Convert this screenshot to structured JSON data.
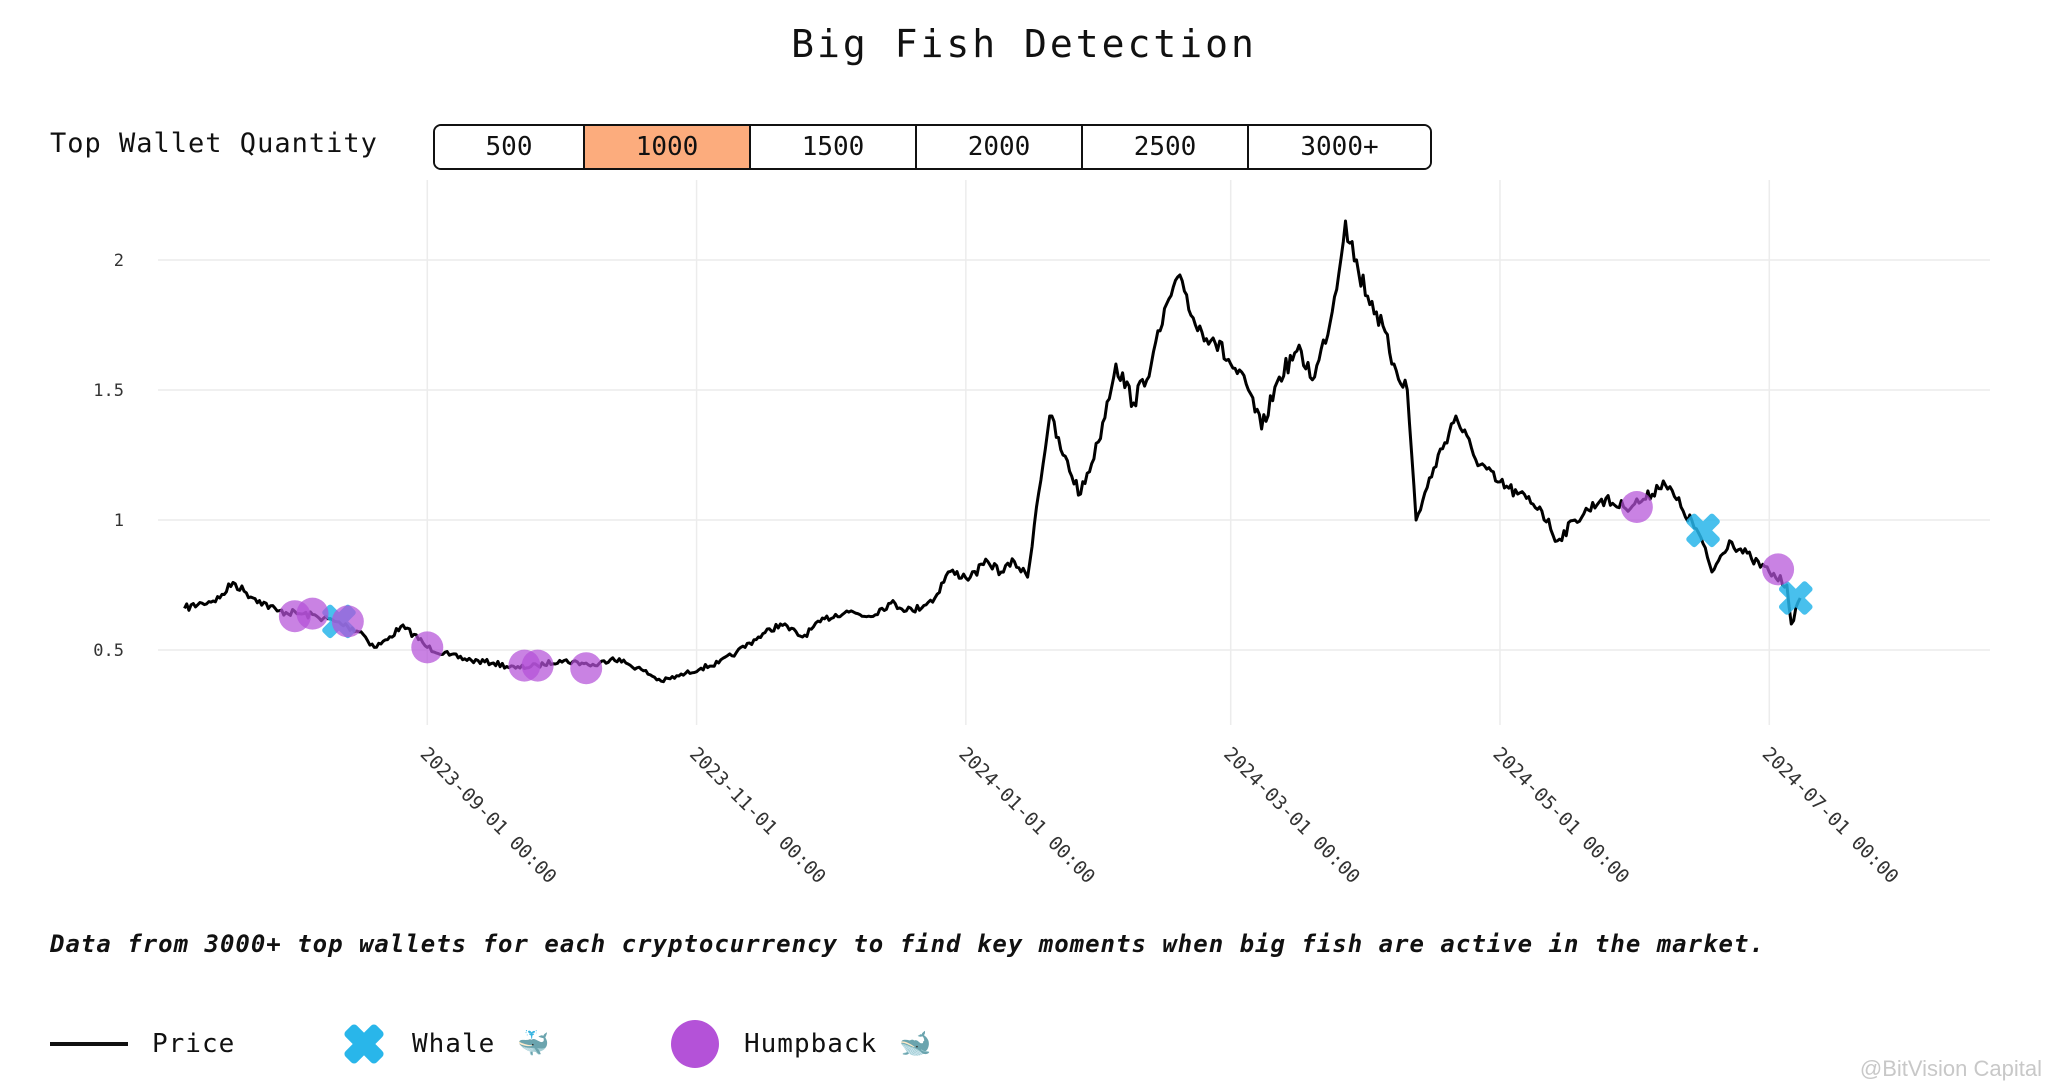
{
  "title": "Big Fish Detection",
  "selector": {
    "label": "Top Wallet Quantity",
    "options": [
      "500",
      "1000",
      "1500",
      "2000",
      "2500",
      "3000+"
    ],
    "selected": "1000"
  },
  "caption": "Data from 3000+ top wallets for each cryptocurrency to find key moments when big fish are active in the market.",
  "legend": {
    "price": "Price",
    "whale": "Whale",
    "whale_emoji": "🐳",
    "humpback": "Humpback",
    "humpback_emoji": "🐋"
  },
  "watermark": "@BitVision Capital",
  "colors": {
    "price": "#000000",
    "whale": "#29b6ea",
    "humpback": "#b452d8",
    "selected": "#fcac7d",
    "grid": "#ececec"
  },
  "chart_data": {
    "type": "line",
    "x_range": [
      "2023-07-02",
      "2024-08-20"
    ],
    "ylim": [
      0.25,
      2.25
    ],
    "y_ticks": [
      0.5,
      1,
      1.5,
      2
    ],
    "y_tick_labels": [
      "0.5",
      "1",
      "1.5",
      "2"
    ],
    "x_ticks": [
      "2023-09-01",
      "2023-11-01",
      "2024-01-01",
      "2024-03-01",
      "2024-05-01",
      "2024-07-01"
    ],
    "x_tick_labels": [
      "2023-09-01 00:00",
      "2023-11-01 00:00",
      "2024-01-01 00:00",
      "2024-03-01 00:00",
      "2024-05-01 00:00",
      "2024-07-01 00:00"
    ],
    "grid": true,
    "series": [
      {
        "name": "Price",
        "points": [
          [
            "2023-07-08",
            0.66
          ],
          [
            "2023-07-12",
            0.68
          ],
          [
            "2023-07-16",
            0.7
          ],
          [
            "2023-07-19",
            0.76
          ],
          [
            "2023-07-22",
            0.72
          ],
          [
            "2023-07-25",
            0.69
          ],
          [
            "2023-07-29",
            0.65
          ],
          [
            "2023-08-03",
            0.64
          ],
          [
            "2023-08-07",
            0.63
          ],
          [
            "2023-08-11",
            0.61
          ],
          [
            "2023-08-14",
            0.59
          ],
          [
            "2023-08-17",
            0.57
          ],
          [
            "2023-08-20",
            0.51
          ],
          [
            "2023-08-23",
            0.54
          ],
          [
            "2023-08-26",
            0.59
          ],
          [
            "2023-08-29",
            0.56
          ],
          [
            "2023-09-01",
            0.51
          ],
          [
            "2023-09-06",
            0.48
          ],
          [
            "2023-09-11",
            0.46
          ],
          [
            "2023-09-16",
            0.45
          ],
          [
            "2023-09-21",
            0.43
          ],
          [
            "2023-09-26",
            0.44
          ],
          [
            "2023-10-01",
            0.46
          ],
          [
            "2023-10-06",
            0.45
          ],
          [
            "2023-10-09",
            0.44
          ],
          [
            "2023-10-13",
            0.47
          ],
          [
            "2023-10-16",
            0.45
          ],
          [
            "2023-10-20",
            0.42
          ],
          [
            "2023-10-24",
            0.38
          ],
          [
            "2023-10-28",
            0.4
          ],
          [
            "2023-11-02",
            0.43
          ],
          [
            "2023-11-06",
            0.45
          ],
          [
            "2023-11-10",
            0.49
          ],
          [
            "2023-11-15",
            0.55
          ],
          [
            "2023-11-20",
            0.6
          ],
          [
            "2023-11-25",
            0.55
          ],
          [
            "2023-11-30",
            0.62
          ],
          [
            "2023-12-05",
            0.65
          ],
          [
            "2023-12-10",
            0.63
          ],
          [
            "2023-12-15",
            0.68
          ],
          [
            "2023-12-20",
            0.65
          ],
          [
            "2023-12-25",
            0.7
          ],
          [
            "2023-12-28",
            0.8
          ],
          [
            "2024-01-02",
            0.78
          ],
          [
            "2024-01-06",
            0.84
          ],
          [
            "2024-01-09",
            0.8
          ],
          [
            "2024-01-12",
            0.84
          ],
          [
            "2024-01-15",
            0.78
          ],
          [
            "2024-01-17",
            1.05
          ],
          [
            "2024-01-20",
            1.4
          ],
          [
            "2024-01-23",
            1.25
          ],
          [
            "2024-01-27",
            1.1
          ],
          [
            "2024-01-31",
            1.3
          ],
          [
            "2024-02-04",
            1.6
          ],
          [
            "2024-02-08",
            1.45
          ],
          [
            "2024-02-12",
            1.6
          ],
          [
            "2024-02-16",
            1.85
          ],
          [
            "2024-02-19",
            1.92
          ],
          [
            "2024-02-22",
            1.75
          ],
          [
            "2024-02-26",
            1.7
          ],
          [
            "2024-03-01",
            1.6
          ],
          [
            "2024-03-05",
            1.5
          ],
          [
            "2024-03-08",
            1.35
          ],
          [
            "2024-03-12",
            1.55
          ],
          [
            "2024-03-16",
            1.65
          ],
          [
            "2024-03-20",
            1.55
          ],
          [
            "2024-03-24",
            1.8
          ],
          [
            "2024-03-27",
            2.15
          ],
          [
            "2024-03-30",
            1.95
          ],
          [
            "2024-04-03",
            1.8
          ],
          [
            "2024-04-07",
            1.6
          ],
          [
            "2024-04-10",
            1.5
          ],
          [
            "2024-04-12",
            1.0
          ],
          [
            "2024-04-16",
            1.2
          ],
          [
            "2024-04-21",
            1.4
          ],
          [
            "2024-04-25",
            1.25
          ],
          [
            "2024-04-30",
            1.15
          ],
          [
            "2024-05-05",
            1.1
          ],
          [
            "2024-05-10",
            1.05
          ],
          [
            "2024-05-14",
            0.92
          ],
          [
            "2024-05-18",
            1.0
          ],
          [
            "2024-05-24",
            1.08
          ],
          [
            "2024-05-29",
            1.05
          ],
          [
            "2024-06-03",
            1.08
          ],
          [
            "2024-06-07",
            1.15
          ],
          [
            "2024-06-11",
            1.05
          ],
          [
            "2024-06-15",
            0.95
          ],
          [
            "2024-06-18",
            0.8
          ],
          [
            "2024-06-22",
            0.92
          ],
          [
            "2024-06-27",
            0.85
          ],
          [
            "2024-07-01",
            0.8
          ],
          [
            "2024-07-05",
            0.75
          ],
          [
            "2024-07-06",
            0.6
          ],
          [
            "2024-07-08",
            0.7
          ]
        ]
      }
    ],
    "whale_points": [
      [
        "2023-08-12",
        0.61
      ],
      [
        "2024-06-16",
        0.96
      ],
      [
        "2024-07-07",
        0.7
      ]
    ],
    "humpback_points": [
      [
        "2023-08-02",
        0.63
      ],
      [
        "2023-08-06",
        0.64
      ],
      [
        "2023-08-14",
        0.61
      ],
      [
        "2023-09-01",
        0.51
      ],
      [
        "2023-09-23",
        0.44
      ],
      [
        "2023-09-26",
        0.44
      ],
      [
        "2023-10-07",
        0.43
      ],
      [
        "2024-06-01",
        1.05
      ],
      [
        "2024-07-03",
        0.81
      ]
    ]
  }
}
